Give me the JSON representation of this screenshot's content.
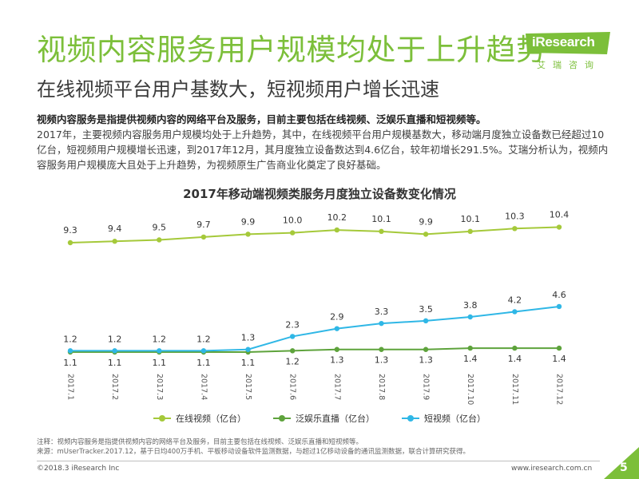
{
  "header": {
    "title": "视频内容服务用户规模均处于上升趋势",
    "subtitle": "在线视频平台用户基数大，短视频用户增长迅速"
  },
  "logo": {
    "name": "iResearch",
    "sub": "艾瑞咨询",
    "color": "#7cbf3a"
  },
  "intro": {
    "lead": "视频内容服务是指提供视频内容的网络平台及服务，目前主要包括在线视频、泛娱乐直播和短视频等。",
    "body": "2017年，主要视频内容服务用户规模均处于上升趋势，其中，在线视频平台用户规模基数大，移动端月度独立设备数已经超过10亿台，短视频用户规模增长迅速，到2017年12月，其月度独立设备数达到4.6亿台，较年初增长291.5%。艾瑞分析认为，视频内容服务用户规模庞大且处于上升趋势，为视频原生广告商业化奠定了良好基础。"
  },
  "chart_data": {
    "type": "line",
    "title": "2017年移动端视频类服务月度独立设备数变化情况",
    "categories": [
      "2017.1",
      "2017.2",
      "2017.3",
      "2017.4",
      "2017.5",
      "2017.6",
      "2017.7",
      "2017.8",
      "2017.9",
      "2017.10",
      "2017.11",
      "2017.12"
    ],
    "series": [
      {
        "name": "在线视频（亿台）",
        "color": "#a5c93a",
        "values": [
          9.3,
          9.4,
          9.5,
          9.7,
          9.9,
          10.0,
          10.2,
          10.1,
          9.9,
          10.1,
          10.3,
          10.4
        ]
      },
      {
        "name": "泛娱乐直播（亿台）",
        "color": "#5ea33c",
        "values": [
          1.1,
          1.1,
          1.1,
          1.1,
          1.1,
          1.2,
          1.3,
          1.3,
          1.3,
          1.4,
          1.4,
          1.4
        ]
      },
      {
        "name": "短视频（亿台）",
        "color": "#2fb7e6",
        "values": [
          1.2,
          1.2,
          1.2,
          1.2,
          1.3,
          2.3,
          2.9,
          3.3,
          3.5,
          3.8,
          4.2,
          4.6
        ]
      }
    ],
    "legend_position": "bottom",
    "grid": false
  },
  "notes": {
    "note": "注释：视频内容服务是指提供视频内容的网络平台及服务，目前主要包括在线视频、泛娱乐直播和短视频等。",
    "source": "来源：mUserTracker.2017.12，基于日均400万手机、平板移动设备软件监测数据，与超过1亿移动设备的通讯监测数据，联合计算研究获得。"
  },
  "footer": {
    "copyright": "©2018.3 iResearch Inc",
    "url": "www.iresearch.com.cn",
    "page": "5"
  }
}
